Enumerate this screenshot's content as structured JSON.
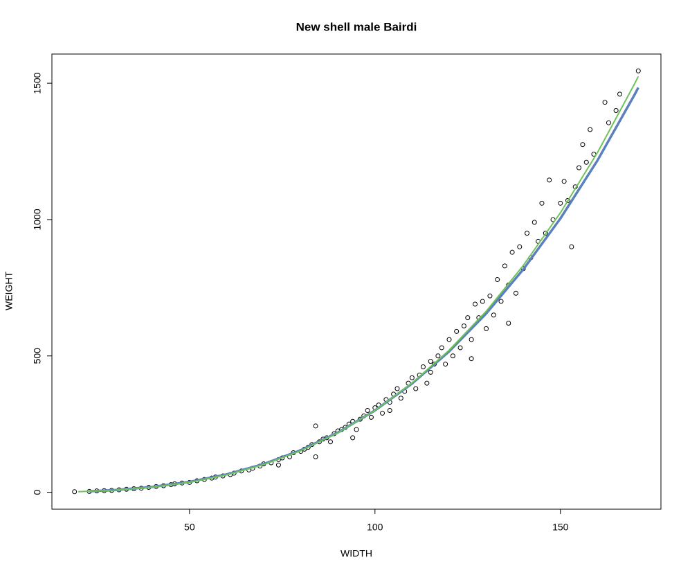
{
  "chart_data": {
    "type": "scatter",
    "title": "New shell male Bairdi",
    "x_label": "WIDTH",
    "y_label": "WEIGHT",
    "xlim": [
      12.9,
      177.1
    ],
    "ylim": [
      -62,
      1607
    ],
    "xticks": [
      50,
      100,
      150
    ],
    "yticks": [
      0,
      500,
      1000,
      1500
    ],
    "series": [
      {
        "type": "points",
        "color": "#000000",
        "x": [
          19,
          23,
          25,
          27,
          29,
          31,
          33,
          35,
          37,
          39,
          41,
          43,
          45,
          46,
          48,
          50,
          52,
          54,
          56,
          57,
          59,
          61,
          62,
          64,
          66,
          67,
          69,
          70,
          72,
          74,
          75,
          77,
          78,
          80,
          81,
          82,
          84,
          83,
          85,
          86,
          87,
          88,
          89,
          90,
          91,
          92,
          93,
          94,
          95,
          96,
          97,
          98,
          99,
          100,
          101,
          102,
          103,
          104,
          105,
          106,
          107,
          108,
          109,
          110,
          111,
          112,
          113,
          114,
          115,
          116,
          117,
          118,
          119,
          120,
          121,
          122,
          123,
          124,
          125,
          126,
          127,
          128,
          129,
          130,
          131,
          132,
          133,
          134,
          135,
          136,
          137,
          138,
          139,
          140,
          141,
          142,
          143,
          144,
          145,
          146,
          147,
          148,
          150,
          151,
          152,
          153,
          154,
          155,
          156,
          157,
          158,
          159,
          162,
          163,
          165,
          166,
          171,
          136,
          126,
          115,
          104,
          94,
          84,
          74
        ],
        "values": [
          2,
          3,
          5,
          6,
          7,
          9,
          11,
          13,
          15,
          18,
          21,
          24,
          28,
          31,
          34,
          36,
          42,
          47,
          52,
          56,
          60,
          65,
          70,
          78,
          82,
          88,
          96,
          104,
          108,
          120,
          126,
          130,
          145,
          150,
          158,
          165,
          243,
          175,
          185,
          195,
          200,
          185,
          215,
          225,
          230,
          238,
          250,
          260,
          230,
          268,
          280,
          300,
          275,
          310,
          320,
          290,
          340,
          330,
          360,
          380,
          345,
          370,
          400,
          420,
          380,
          430,
          460,
          400,
          480,
          470,
          500,
          530,
          470,
          560,
          500,
          590,
          530,
          610,
          640,
          560,
          690,
          640,
          700,
          600,
          720,
          650,
          780,
          700,
          830,
          760,
          880,
          730,
          900,
          820,
          950,
          860,
          990,
          920,
          1060,
          950,
          1145,
          1000,
          1060,
          1140,
          1070,
          900,
          1120,
          1190,
          1275,
          1210,
          1330,
          1240,
          1430,
          1355,
          1400,
          1460,
          1545,
          620,
          490,
          440,
          300,
          200,
          130,
          100
        ]
      },
      {
        "type": "line",
        "color": "#5b7fbf",
        "width": 3.5,
        "x": [
          23,
          30,
          40,
          50,
          60,
          70,
          80,
          90,
          100,
          110,
          120,
          130,
          140,
          150,
          160,
          170,
          171
        ],
        "values": [
          3.7,
          8.3,
          19.6,
          38,
          65.5,
          103.6,
          154.3,
          219.2,
          300,
          398.5,
          516.5,
          655.6,
          817.7,
          1004,
          1217,
          1458,
          1484
        ]
      },
      {
        "type": "line",
        "color": "#6ec25a",
        "width": 2,
        "x": [
          20,
          30,
          40,
          50,
          60,
          70,
          80,
          90,
          100,
          110,
          120,
          130,
          140,
          150,
          160,
          170,
          171
        ],
        "values": [
          2.3,
          7.8,
          18.7,
          36.7,
          63.8,
          101.8,
          152.6,
          218,
          300,
          400.4,
          521,
          664,
          832,
          1025,
          1246,
          1498,
          1525
        ]
      }
    ]
  }
}
